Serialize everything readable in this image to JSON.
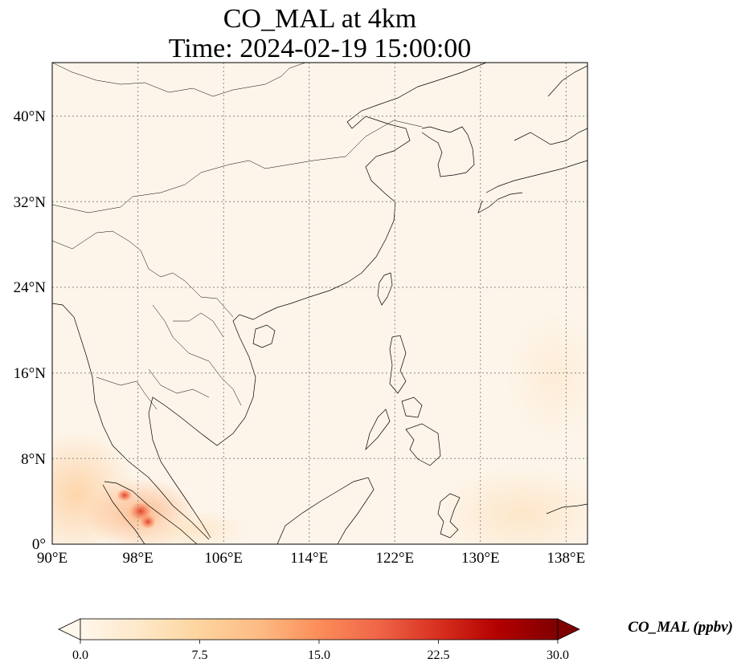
{
  "title": {
    "line1": "CO_MAL at 4km",
    "line2": "Time: 2024-02-19 15:00:00"
  },
  "map": {
    "projection": "PlateCarree",
    "lon_range": [
      90,
      140
    ],
    "lat_range": [
      0,
      45
    ],
    "gridlines": "dotted gray",
    "background_color": "#fdf5ea",
    "x_ticks": [
      "90°E",
      "98°E",
      "106°E",
      "114°E",
      "122°E",
      "130°E",
      "138°E"
    ],
    "y_ticks": [
      "0°",
      "8°N",
      "16°N",
      "24°N",
      "32°N",
      "40°N"
    ],
    "x_tick_values": [
      90,
      98,
      106,
      114,
      122,
      130,
      138
    ],
    "y_tick_values": [
      0,
      8,
      16,
      24,
      32,
      40
    ]
  },
  "colorbar": {
    "label": "CO_MAL (ppbv)",
    "tick_labels": [
      "0.0",
      "7.5",
      "15.0",
      "22.5",
      "30.0"
    ],
    "tick_values": [
      0,
      7.5,
      15,
      22.5,
      30
    ],
    "range": [
      0,
      30
    ],
    "extend": "both",
    "colormap": "OrRd",
    "colors": [
      "#fff7ec",
      "#fee8c8",
      "#fdd49e",
      "#fdbb84",
      "#fc8d59",
      "#ef6548",
      "#d7301f",
      "#b30000",
      "#7f0000"
    ]
  }
}
